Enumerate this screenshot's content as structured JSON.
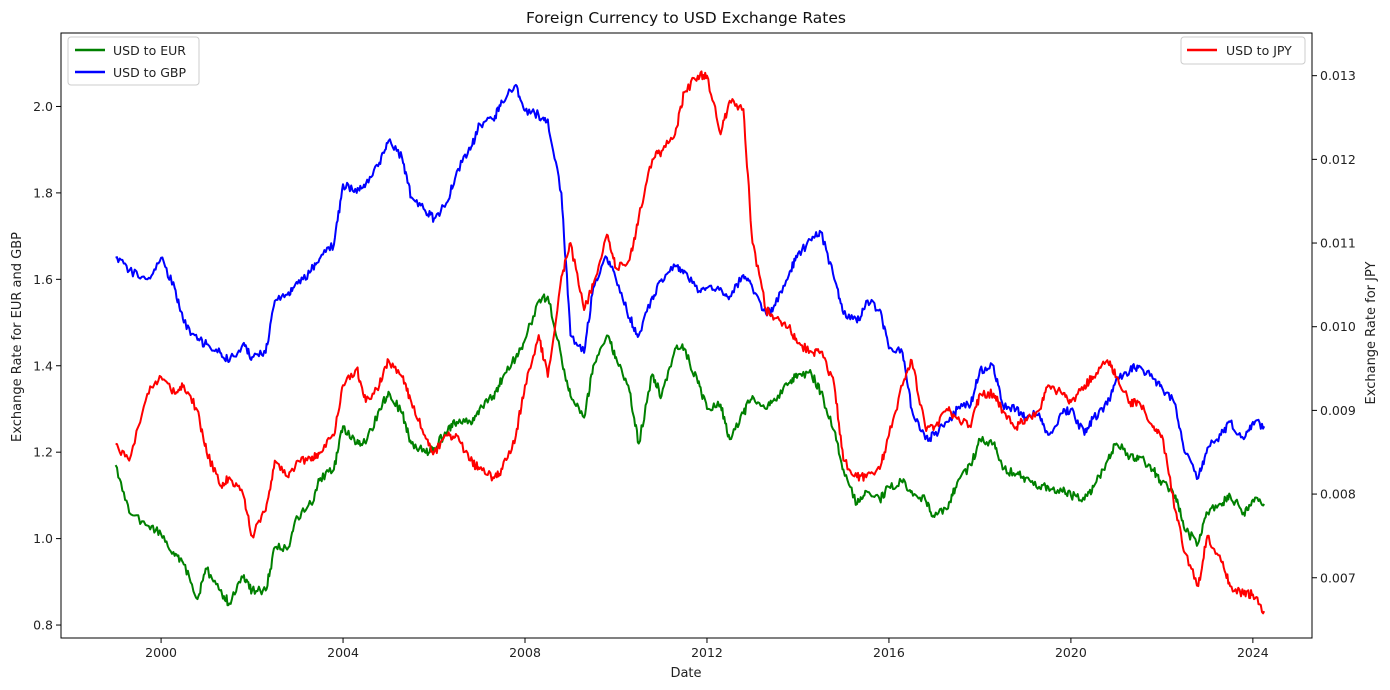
{
  "chart_data": {
    "type": "line",
    "title": "Foreign Currency to USD Exchange Rates",
    "xlabel": "Date",
    "ylabel_left": "Exchange Rate for EUR and GBP",
    "ylabel_right": "Exchange Rate for JPY",
    "x_tick_labels": [
      "2000",
      "2004",
      "2008",
      "2012",
      "2016",
      "2020",
      "2024"
    ],
    "y_left_tick_labels": [
      "0.8",
      "1.0",
      "1.2",
      "1.4",
      "1.6",
      "1.8",
      "2.0"
    ],
    "y_right_tick_labels": [
      "0.007",
      "0.008",
      "0.009",
      "0.010",
      "0.011",
      "0.012",
      "0.013"
    ],
    "xlim": [
      1997.8,
      2025.3
    ],
    "ylim_left": [
      0.77,
      2.17
    ],
    "ylim_right": [
      0.00628,
      0.01351
    ],
    "grid": false,
    "legend_left_placement": "upper-left",
    "legend_right_placement": "upper-right",
    "series": [
      {
        "name": "USD to EUR",
        "axis": "left",
        "color": "#008000",
        "x": [
          1999.0,
          1999.3,
          1999.7,
          2000.0,
          2000.3,
          2000.5,
          2000.8,
          2001.0,
          2001.3,
          2001.5,
          2001.8,
          2002.0,
          2002.3,
          2002.5,
          2002.8,
          2003.0,
          2003.3,
          2003.5,
          2003.8,
          2004.0,
          2004.3,
          2004.5,
          2004.8,
          2005.0,
          2005.3,
          2005.5,
          2005.8,
          2006.0,
          2006.3,
          2006.5,
          2006.8,
          2007.0,
          2007.3,
          2007.5,
          2007.8,
          2008.0,
          2008.3,
          2008.5,
          2008.8,
          2009.0,
          2009.3,
          2009.5,
          2009.8,
          2010.0,
          2010.3,
          2010.5,
          2010.8,
          2011.0,
          2011.3,
          2011.5,
          2011.8,
          2012.0,
          2012.3,
          2012.5,
          2012.8,
          2013.0,
          2013.3,
          2013.5,
          2013.8,
          2014.0,
          2014.3,
          2014.5,
          2014.8,
          2015.0,
          2015.3,
          2015.5,
          2015.8,
          2016.0,
          2016.3,
          2016.5,
          2016.8,
          2017.0,
          2017.3,
          2017.5,
          2017.8,
          2018.0,
          2018.3,
          2018.5,
          2018.8,
          2019.0,
          2019.3,
          2019.5,
          2019.8,
          2020.0,
          2020.3,
          2020.5,
          2020.8,
          2021.0,
          2021.3,
          2021.5,
          2021.8,
          2022.0,
          2022.3,
          2022.5,
          2022.8,
          2023.0,
          2023.3,
          2023.5,
          2023.8,
          2024.0,
          2024.25
        ],
        "values": [
          1.17,
          1.06,
          1.03,
          1.01,
          0.96,
          0.94,
          0.86,
          0.93,
          0.88,
          0.85,
          0.91,
          0.88,
          0.88,
          0.98,
          0.98,
          1.05,
          1.08,
          1.14,
          1.16,
          1.26,
          1.22,
          1.22,
          1.3,
          1.34,
          1.29,
          1.22,
          1.2,
          1.21,
          1.25,
          1.27,
          1.27,
          1.3,
          1.33,
          1.37,
          1.42,
          1.46,
          1.55,
          1.56,
          1.42,
          1.33,
          1.28,
          1.4,
          1.47,
          1.42,
          1.34,
          1.22,
          1.38,
          1.33,
          1.44,
          1.44,
          1.36,
          1.3,
          1.31,
          1.23,
          1.29,
          1.33,
          1.3,
          1.32,
          1.36,
          1.38,
          1.38,
          1.34,
          1.25,
          1.16,
          1.08,
          1.11,
          1.09,
          1.12,
          1.13,
          1.11,
          1.09,
          1.05,
          1.07,
          1.13,
          1.17,
          1.23,
          1.22,
          1.16,
          1.15,
          1.14,
          1.12,
          1.12,
          1.11,
          1.1,
          1.09,
          1.12,
          1.18,
          1.22,
          1.19,
          1.19,
          1.16,
          1.13,
          1.1,
          1.02,
          0.99,
          1.06,
          1.08,
          1.1,
          1.06,
          1.09,
          1.08
        ]
      },
      {
        "name": "USD to GBP",
        "axis": "left",
        "color": "#0000ff",
        "x": [
          1999.0,
          1999.3,
          1999.7,
          2000.0,
          2000.3,
          2000.5,
          2000.8,
          2001.0,
          2001.3,
          2001.5,
          2001.8,
          2002.0,
          2002.3,
          2002.5,
          2002.8,
          2003.0,
          2003.3,
          2003.5,
          2003.8,
          2004.0,
          2004.3,
          2004.5,
          2004.8,
          2005.0,
          2005.3,
          2005.5,
          2005.8,
          2006.0,
          2006.3,
          2006.5,
          2006.8,
          2007.0,
          2007.3,
          2007.5,
          2007.8,
          2008.0,
          2008.3,
          2008.5,
          2008.8,
          2009.0,
          2009.3,
          2009.5,
          2009.8,
          2010.0,
          2010.3,
          2010.5,
          2010.8,
          2011.0,
          2011.3,
          2011.5,
          2011.8,
          2012.0,
          2012.3,
          2012.5,
          2012.8,
          2013.0,
          2013.3,
          2013.5,
          2013.8,
          2014.0,
          2014.3,
          2014.5,
          2014.8,
          2015.0,
          2015.3,
          2015.5,
          2015.8,
          2016.0,
          2016.3,
          2016.5,
          2016.8,
          2017.0,
          2017.3,
          2017.5,
          2017.8,
          2018.0,
          2018.3,
          2018.5,
          2018.8,
          2019.0,
          2019.3,
          2019.5,
          2019.8,
          2020.0,
          2020.3,
          2020.5,
          2020.8,
          2021.0,
          2021.3,
          2021.5,
          2021.8,
          2022.0,
          2022.3,
          2022.5,
          2022.8,
          2023.0,
          2023.3,
          2023.5,
          2023.8,
          2024.0,
          2024.25
        ],
        "values": [
          1.65,
          1.62,
          1.6,
          1.65,
          1.58,
          1.5,
          1.46,
          1.45,
          1.43,
          1.41,
          1.45,
          1.42,
          1.43,
          1.55,
          1.57,
          1.59,
          1.62,
          1.65,
          1.68,
          1.82,
          1.8,
          1.82,
          1.87,
          1.92,
          1.88,
          1.79,
          1.76,
          1.74,
          1.78,
          1.85,
          1.9,
          1.96,
          1.97,
          2.01,
          2.05,
          1.99,
          1.98,
          1.97,
          1.8,
          1.47,
          1.43,
          1.58,
          1.65,
          1.6,
          1.51,
          1.47,
          1.56,
          1.6,
          1.63,
          1.62,
          1.57,
          1.58,
          1.58,
          1.56,
          1.61,
          1.58,
          1.52,
          1.54,
          1.61,
          1.66,
          1.69,
          1.71,
          1.6,
          1.52,
          1.5,
          1.55,
          1.53,
          1.44,
          1.43,
          1.3,
          1.23,
          1.24,
          1.27,
          1.3,
          1.31,
          1.39,
          1.4,
          1.31,
          1.3,
          1.28,
          1.29,
          1.24,
          1.29,
          1.3,
          1.24,
          1.28,
          1.31,
          1.37,
          1.39,
          1.4,
          1.37,
          1.35,
          1.31,
          1.2,
          1.14,
          1.21,
          1.24,
          1.27,
          1.23,
          1.27,
          1.26
        ]
      },
      {
        "name": "USD to JPY",
        "axis": "right",
        "color": "#ff0000",
        "x": [
          1999.0,
          1999.3,
          1999.7,
          2000.0,
          2000.3,
          2000.5,
          2000.8,
          2001.0,
          2001.3,
          2001.5,
          2001.8,
          2002.0,
          2002.3,
          2002.5,
          2002.8,
          2003.0,
          2003.3,
          2003.5,
          2003.8,
          2004.0,
          2004.3,
          2004.5,
          2004.8,
          2005.0,
          2005.3,
          2005.5,
          2005.8,
          2006.0,
          2006.3,
          2006.5,
          2006.8,
          2007.0,
          2007.3,
          2007.5,
          2007.8,
          2008.0,
          2008.3,
          2008.5,
          2008.8,
          2009.0,
          2009.3,
          2009.5,
          2009.8,
          2010.0,
          2010.3,
          2010.5,
          2010.8,
          2011.0,
          2011.3,
          2011.5,
          2011.8,
          2012.0,
          2012.3,
          2012.5,
          2012.8,
          2013.0,
          2013.3,
          2013.5,
          2013.8,
          2014.0,
          2014.3,
          2014.5,
          2014.8,
          2015.0,
          2015.3,
          2015.5,
          2015.8,
          2016.0,
          2016.3,
          2016.5,
          2016.8,
          2017.0,
          2017.3,
          2017.5,
          2017.8,
          2018.0,
          2018.3,
          2018.5,
          2018.8,
          2019.0,
          2019.3,
          2019.5,
          2019.8,
          2020.0,
          2020.3,
          2020.5,
          2020.8,
          2021.0,
          2021.3,
          2021.5,
          2021.8,
          2022.0,
          2022.3,
          2022.5,
          2022.8,
          2023.0,
          2023.3,
          2023.5,
          2023.8,
          2024.0,
          2024.25
        ],
        "values": [
          0.0086,
          0.0084,
          0.0092,
          0.0094,
          0.0092,
          0.0093,
          0.009,
          0.0085,
          0.0081,
          0.0082,
          0.008,
          0.0075,
          0.0078,
          0.0084,
          0.0082,
          0.0084,
          0.0084,
          0.0085,
          0.0087,
          0.0093,
          0.0095,
          0.0091,
          0.0093,
          0.0096,
          0.0094,
          0.0091,
          0.0087,
          0.0085,
          0.0087,
          0.0087,
          0.0084,
          0.0083,
          0.0082,
          0.0083,
          0.0087,
          0.0093,
          0.0099,
          0.0094,
          0.0106,
          0.011,
          0.0102,
          0.0105,
          0.0111,
          0.0107,
          0.0108,
          0.0113,
          0.012,
          0.0121,
          0.0123,
          0.0128,
          0.013,
          0.013,
          0.0123,
          0.0127,
          0.0126,
          0.011,
          0.0102,
          0.0101,
          0.01,
          0.0098,
          0.0097,
          0.0097,
          0.0093,
          0.0084,
          0.0082,
          0.0082,
          0.0083,
          0.0087,
          0.0093,
          0.0096,
          0.0088,
          0.0088,
          0.009,
          0.0089,
          0.0088,
          0.0092,
          0.0092,
          0.009,
          0.0088,
          0.0089,
          0.009,
          0.0093,
          0.0092,
          0.0091,
          0.0093,
          0.0094,
          0.0096,
          0.0094,
          0.0091,
          0.0091,
          0.0088,
          0.0087,
          0.0078,
          0.0073,
          0.0069,
          0.0075,
          0.0072,
          0.0069,
          0.0068,
          0.0068,
          0.0066
        ]
      }
    ]
  }
}
